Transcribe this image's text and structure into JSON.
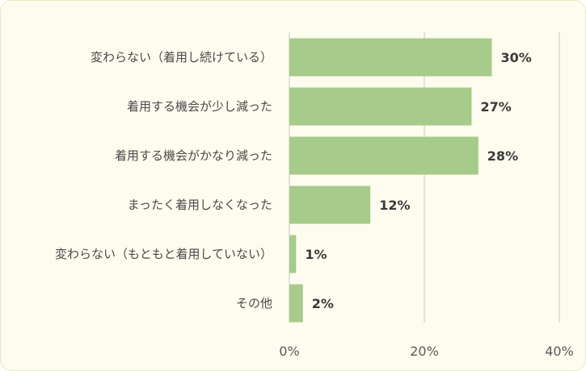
{
  "chart_data": {
    "type": "bar",
    "orientation": "horizontal",
    "categories": [
      "変わらない（着用し続けている）",
      "着用する機会が少し減った",
      "着用する機会がかなり減った",
      "まったく着用しなくなった",
      "変わらない（もともと着用していない）",
      "その他"
    ],
    "values": [
      30,
      27,
      28,
      12,
      1,
      2
    ],
    "value_labels": [
      "30%",
      "27%",
      "28%",
      "12%",
      "1%",
      "2%"
    ],
    "xlim": [
      0,
      40
    ],
    "xticks": [
      0,
      20,
      40
    ],
    "xtick_labels": [
      "0%",
      "20%",
      "40%"
    ],
    "grid": true,
    "title": "",
    "xlabel": "",
    "ylabel": ""
  },
  "colors": {
    "bar": "#a6cb8a",
    "background": "#fefcee",
    "gridline": "#d9d9d9"
  }
}
